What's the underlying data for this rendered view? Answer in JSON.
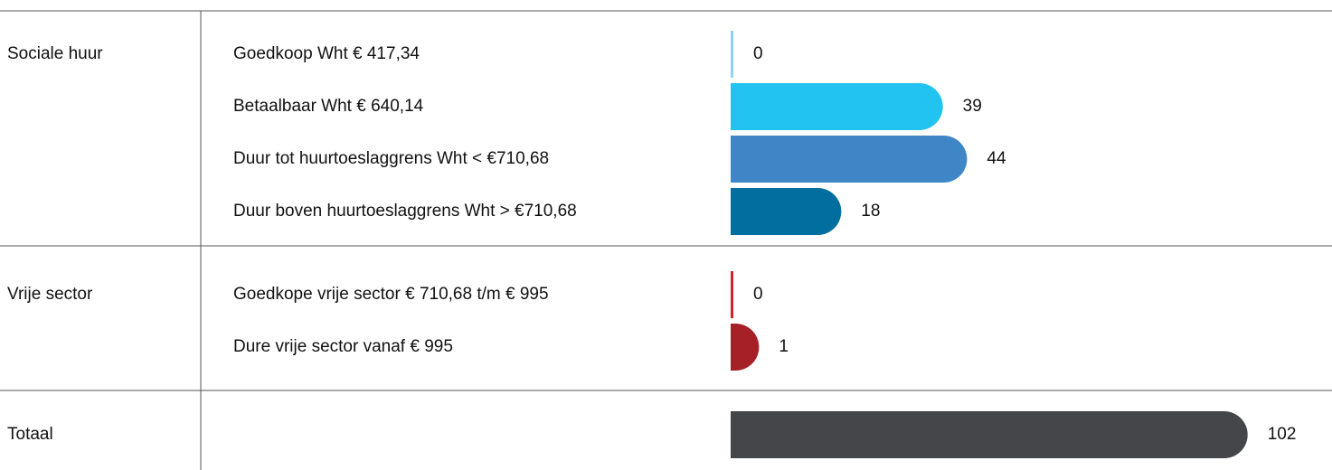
{
  "chart_data": {
    "type": "bar",
    "groups": [
      {
        "name": "Sociale huur",
        "categories": [
          "Goedkoop Wht € 417,34",
          "Betaalbaar Wht € 640,14",
          "Duur tot huurtoeslaggrens Wht < €710,68",
          "Duur boven huurtoeslaggrens Wht > €710,68"
        ],
        "values": [
          0,
          39,
          44,
          18
        ],
        "colors": [
          "#8fd3f0",
          "#22c3f0",
          "#3f86c6",
          "#006f9f"
        ]
      },
      {
        "name": "Vrije sector",
        "categories": [
          "Goedkope vrije sector € 710,68 t/m € 995",
          "Dure vrije sector vanaf € 995"
        ],
        "values": [
          0,
          1
        ],
        "colors": [
          "#d0232a",
          "#a52127"
        ]
      }
    ],
    "total": {
      "name": "Totaal",
      "value": 102,
      "color": "#444649"
    }
  }
}
